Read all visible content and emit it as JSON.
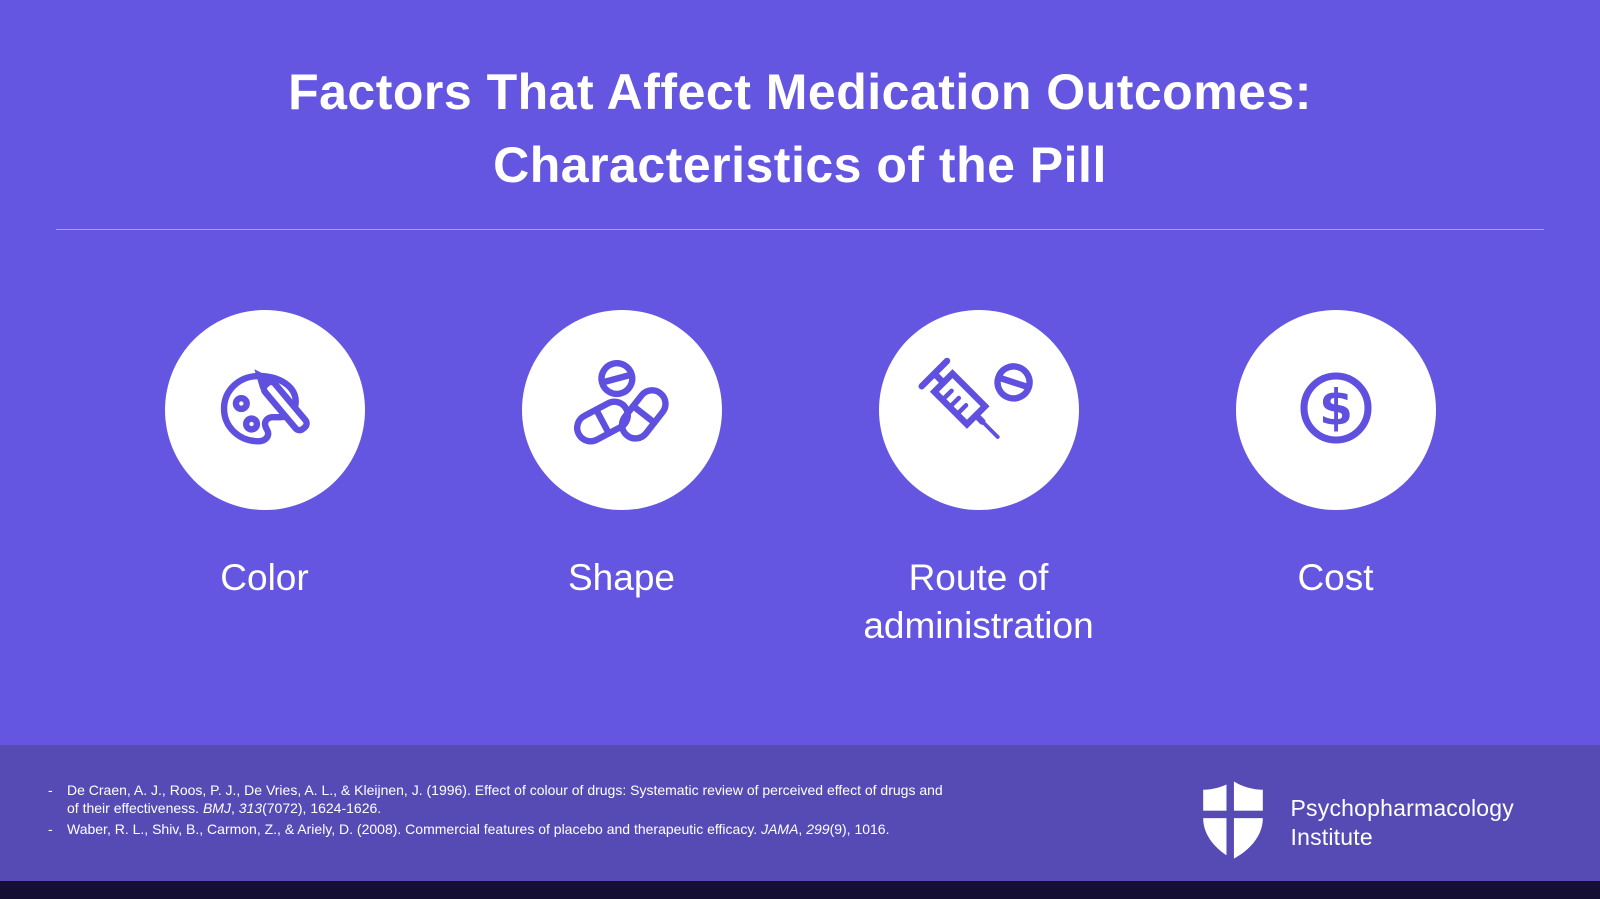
{
  "slide": {
    "title": {
      "line1": "Factors That Affect Medication Outcomes:",
      "line2": "Characteristics of the Pill"
    },
    "items": [
      {
        "label": "Color",
        "icon": "palette-icon"
      },
      {
        "label": "Shape",
        "icon": "pills-icon"
      },
      {
        "label": "Route of administration",
        "icon": "syringe-icon"
      },
      {
        "label": "Cost",
        "icon": "dollar-coin-icon"
      }
    ]
  },
  "footer": {
    "bullet": "-",
    "references": [
      {
        "segments": [
          {
            "text": "De Craen, A. J., Roos, P. J., De Vries, A. L., & Kleijnen, J. (1996). Effect of colour of drugs: Systematic review of perceived effect of drugs and of their effectiveness. ",
            "italic": false
          },
          {
            "text": "BMJ",
            "italic": true
          },
          {
            "text": ", ",
            "italic": false
          },
          {
            "text": "313",
            "italic": true
          },
          {
            "text": "(7072), 1624-1626.",
            "italic": false
          }
        ]
      },
      {
        "segments": [
          {
            "text": "Waber, R. L., Shiv, B., Carmon, Z., & Ariely, D. (2008). Commercial features of placebo and therapeutic efficacy. ",
            "italic": false
          },
          {
            "text": "JAMA",
            "italic": true
          },
          {
            "text": ", ",
            "italic": false
          },
          {
            "text": "299",
            "italic": true
          },
          {
            "text": "(9), 1016.",
            "italic": false
          }
        ]
      }
    ],
    "brand": {
      "name_line1": "Psychopharmacology",
      "name_line2": "Institute"
    }
  },
  "colors": {
    "background": "#6456E0",
    "footer_bar": "#564BB5",
    "bottom_strip": "#151033",
    "icon_accent": "#5F50DF",
    "text": "#FFFFFF"
  }
}
